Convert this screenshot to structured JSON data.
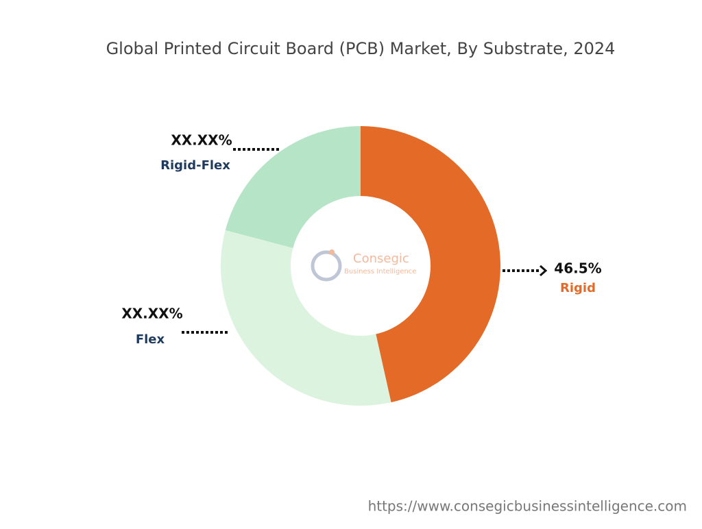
{
  "chart_data": {
    "type": "donut",
    "title": "Global Printed Circuit Board (PCB) Market, By Substrate, 2024",
    "categories": [
      "Rigid",
      "Flex",
      "Rigid-Flex"
    ],
    "values": [
      46.5,
      32.6,
      20.9
    ],
    "value_labels": [
      "46.5%",
      "XX.XX%",
      "XX.XX%"
    ],
    "colors": [
      "#e36a27",
      "#dcf3df",
      "#b6e4c7"
    ],
    "label_colors": [
      "#e36a27",
      "#1f3a5f",
      "#1f3a5f"
    ]
  },
  "watermark": {
    "name": "Consegic",
    "tagline": "Business Intelligence"
  },
  "source": "https://www.consegicbusinessintelligence.com"
}
